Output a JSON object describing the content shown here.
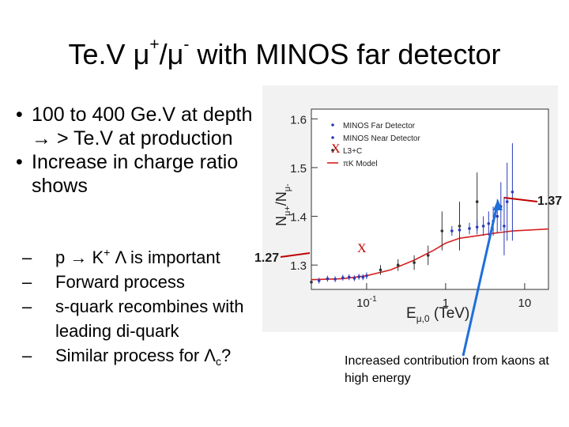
{
  "slide": {
    "title_pre": "Te.V ",
    "mu": "μ",
    "plus": "+",
    "slash": "/",
    "minus": "-",
    "title_post": " with MINOS far detector"
  },
  "bullets": [
    {
      "text": "100 to 400 Ge.V at depth → > Te.V at production"
    },
    {
      "text": "Increase in charge ratio shows"
    }
  ],
  "subbullets": {
    "s1_a": "p → K",
    "s1_sup": "+",
    "s1_b": " Λ is important",
    "s2": "Forward process",
    "s3": "s-quark recombines with leading di-quark",
    "s4_a": "Similar process for Λ",
    "s4_sub": "c",
    "s4_b": "?"
  },
  "annotations": {
    "value_high": "1.37",
    "value_low": "1.27",
    "marker_x": "X",
    "caption": "Increased contribution from kaons at high energy"
  },
  "chart_data": {
    "type": "scatter",
    "xlabel": "E",
    "xlabel_sub": "μ,0",
    "xlabel_unit": " (TeV)",
    "ylabel": "N",
    "ylabel_sub1": "μ+",
    "ylabel_mid": "/N",
    "ylabel_sub2": "μ-",
    "x_scale": "log",
    "xlim": [
      0.02,
      20
    ],
    "ylim": [
      1.25,
      1.62
    ],
    "x_ticks": [
      {
        "v": 0.1,
        "label": "10",
        "sup": "-1"
      },
      {
        "v": 1,
        "label": "1",
        "sup": ""
      },
      {
        "v": 10,
        "label": "10",
        "sup": ""
      }
    ],
    "y_ticks": [
      1.3,
      1.4,
      1.5,
      1.6
    ],
    "legend": {
      "position": "top-left",
      "entries": [
        {
          "name": "MINOS Far Detector",
          "marker": "point",
          "color": "#2a3bb8"
        },
        {
          "name": "MINOS Near Detector",
          "marker": "point",
          "color": "#2a3bb8"
        },
        {
          "name": "L3+C",
          "marker": "point",
          "color": "#333333"
        },
        {
          "name": "πK Model",
          "marker": "line",
          "color": "#d62020"
        }
      ]
    },
    "series": [
      {
        "name": "πK Model",
        "kind": "line",
        "color": "#d62020",
        "x": [
          0.02,
          0.05,
          0.1,
          0.2,
          0.4,
          0.7,
          1.0,
          1.5,
          2.5,
          4,
          7,
          12,
          20
        ],
        "y": [
          1.27,
          1.272,
          1.278,
          1.29,
          1.31,
          1.33,
          1.345,
          1.355,
          1.36,
          1.365,
          1.37,
          1.372,
          1.374
        ]
      },
      {
        "name": "MINOS Near Detector",
        "kind": "points",
        "color": "#2a3bb8",
        "x": [
          0.025,
          0.032,
          0.04,
          0.05,
          0.06,
          0.07,
          0.08,
          0.09,
          0.1
        ],
        "y": [
          1.268,
          1.272,
          1.271,
          1.274,
          1.275,
          1.273,
          1.276,
          1.275,
          1.278
        ],
        "err": [
          0.006,
          0.006,
          0.006,
          0.006,
          0.006,
          0.006,
          0.006,
          0.006,
          0.007
        ]
      },
      {
        "name": "L3+C",
        "kind": "points",
        "color": "#333333",
        "x": [
          0.02,
          0.15,
          0.25,
          0.4,
          0.6,
          0.9,
          1.5,
          2.5
        ],
        "y": [
          1.265,
          1.29,
          1.3,
          1.305,
          1.32,
          1.37,
          1.38,
          1.43
        ],
        "err": [
          0.01,
          0.01,
          0.012,
          0.015,
          0.02,
          0.04,
          0.05,
          0.06
        ]
      },
      {
        "name": "MINOS Far Detector",
        "kind": "points",
        "color": "#2a3bb8",
        "x": [
          1.2,
          1.5,
          2.0,
          2.5,
          3.0,
          3.5,
          4.0,
          4.5,
          5.0,
          5.5,
          6.0,
          7.0
        ],
        "y": [
          1.37,
          1.372,
          1.375,
          1.378,
          1.38,
          1.385,
          1.39,
          1.4,
          1.42,
          1.38,
          1.43,
          1.45
        ],
        "err": [
          0.01,
          0.01,
          0.012,
          0.015,
          0.02,
          0.025,
          0.03,
          0.035,
          0.05,
          0.06,
          0.08,
          0.1
        ]
      }
    ]
  }
}
